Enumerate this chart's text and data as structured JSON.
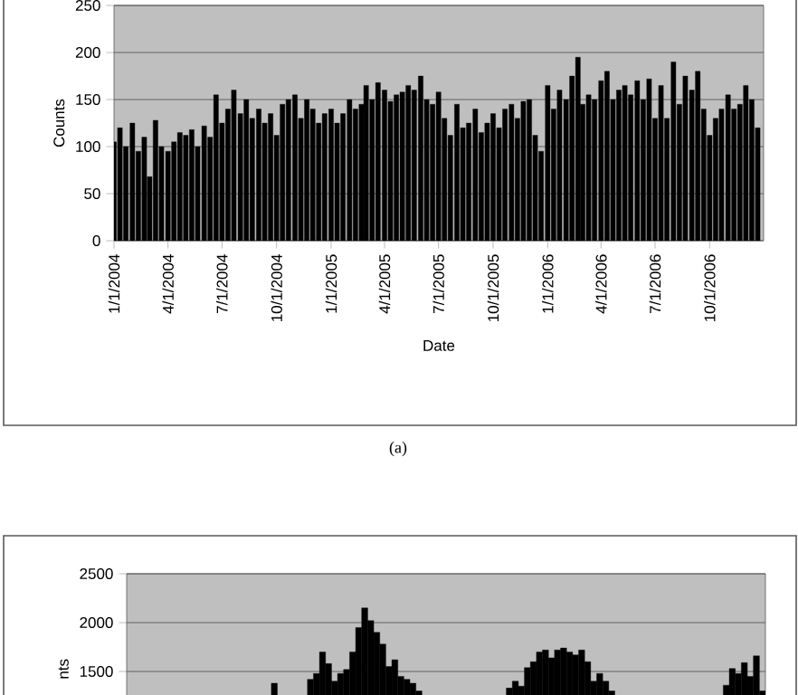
{
  "chart_data": [
    {
      "type": "bar",
      "xlabel": "Date",
      "ylabel": "Counts",
      "color": "#000000",
      "grid": "y",
      "annotations": [
        "(a)"
      ],
      "xlim": [
        "2004-01-01",
        "2006-12-31"
      ],
      "ylim": [
        0,
        250
      ],
      "yticks": [
        0,
        50,
        100,
        150,
        200,
        250
      ],
      "xticks": [
        {
          "value": "2004-01-01",
          "label": "1/1/2004"
        },
        {
          "value": "2004-04-01",
          "label": "4/1/2004"
        },
        {
          "value": "2004-07-01",
          "label": "7/1/2004"
        },
        {
          "value": "2004-10-01",
          "label": "10/1/2004"
        },
        {
          "value": "2005-01-01",
          "label": "1/1/2005"
        },
        {
          "value": "2005-04-01",
          "label": "4/1/2005"
        },
        {
          "value": "2005-07-01",
          "label": "7/1/2005"
        },
        {
          "value": "2005-10-01",
          "label": "10/1/2005"
        },
        {
          "value": "2006-01-01",
          "label": "1/1/2006"
        },
        {
          "value": "2006-04-01",
          "label": "4/1/2006"
        },
        {
          "value": "2006-07-01",
          "label": "7/1/2006"
        },
        {
          "value": "2006-10-01",
          "label": "10/1/2006"
        }
      ],
      "x": [
        "2004-01-01",
        "2004-01-11",
        "2004-01-21",
        "2004-02-01",
        "2004-02-11",
        "2004-02-21",
        "2004-03-01",
        "2004-03-11",
        "2004-03-21",
        "2004-04-01",
        "2004-04-11",
        "2004-04-21",
        "2004-05-01",
        "2004-05-11",
        "2004-05-21",
        "2004-06-01",
        "2004-06-11",
        "2004-06-21",
        "2004-07-01",
        "2004-07-11",
        "2004-07-21",
        "2004-08-01",
        "2004-08-11",
        "2004-08-21",
        "2004-09-01",
        "2004-09-11",
        "2004-09-21",
        "2004-10-01",
        "2004-10-11",
        "2004-10-21",
        "2004-11-01",
        "2004-11-11",
        "2004-11-21",
        "2004-12-01",
        "2004-12-11",
        "2004-12-21",
        "2005-01-01",
        "2005-01-11",
        "2005-01-21",
        "2005-02-01",
        "2005-02-11",
        "2005-02-21",
        "2005-03-01",
        "2005-03-11",
        "2005-03-21",
        "2005-04-01",
        "2005-04-11",
        "2005-04-21",
        "2005-05-01",
        "2005-05-11",
        "2005-05-21",
        "2005-06-01",
        "2005-06-11",
        "2005-06-21",
        "2005-07-01",
        "2005-07-11",
        "2005-07-21",
        "2005-08-01",
        "2005-08-11",
        "2005-08-21",
        "2005-09-01",
        "2005-09-11",
        "2005-09-21",
        "2005-10-01",
        "2005-10-11",
        "2005-10-21",
        "2005-11-01",
        "2005-11-11",
        "2005-11-21",
        "2005-12-01",
        "2005-12-11",
        "2005-12-21",
        "2006-01-01",
        "2006-01-11",
        "2006-01-21",
        "2006-02-01",
        "2006-02-11",
        "2006-02-21",
        "2006-03-01",
        "2006-03-11",
        "2006-03-21",
        "2006-04-01",
        "2006-04-11",
        "2006-04-21",
        "2006-05-01",
        "2006-05-11",
        "2006-05-21",
        "2006-06-01",
        "2006-06-11",
        "2006-06-21",
        "2006-07-01",
        "2006-07-11",
        "2006-07-21",
        "2006-08-01",
        "2006-08-11",
        "2006-08-21",
        "2006-09-01",
        "2006-09-11",
        "2006-09-21",
        "2006-10-01",
        "2006-10-11",
        "2006-10-21",
        "2006-11-01",
        "2006-11-11",
        "2006-11-21",
        "2006-12-01",
        "2006-12-11",
        "2006-12-21"
      ],
      "values": [
        105,
        120,
        100,
        125,
        95,
        110,
        68,
        128,
        100,
        95,
        105,
        115,
        112,
        118,
        100,
        122,
        110,
        155,
        125,
        140,
        160,
        135,
        150,
        130,
        140,
        125,
        135,
        112,
        145,
        150,
        155,
        130,
        150,
        140,
        125,
        135,
        140,
        125,
        135,
        150,
        140,
        145,
        165,
        150,
        168,
        160,
        148,
        155,
        158,
        165,
        160,
        175,
        150,
        145,
        158,
        130,
        112,
        145,
        120,
        125,
        140,
        115,
        125,
        135,
        120,
        140,
        145,
        130,
        148,
        150,
        112,
        95,
        165,
        140,
        160,
        150,
        175,
        195,
        145,
        155,
        150,
        170,
        180,
        150,
        160,
        165,
        155,
        170,
        150,
        172,
        130,
        165,
        130,
        190,
        145,
        175,
        160,
        180,
        140,
        112,
        130,
        140,
        155,
        140,
        145,
        165,
        150,
        120
      ]
    },
    {
      "type": "bar",
      "ylabel": "nts",
      "color": "#000000",
      "grid": "y",
      "tick_labels": "y",
      "ylim": [
        0,
        2500
      ],
      "yticks": [
        1500,
        2000,
        2500
      ],
      "categories": [
        null,
        null,
        null,
        null,
        null,
        null,
        null,
        null,
        null,
        null,
        null,
        null,
        null,
        null,
        null,
        null,
        null,
        null,
        null,
        null,
        null,
        null,
        null,
        null,
        null,
        null,
        null,
        null,
        null,
        null,
        null,
        null,
        null,
        null,
        null,
        null,
        null,
        null,
        null,
        null,
        null,
        null,
        null,
        null,
        null,
        null,
        null,
        null,
        null,
        null,
        null,
        null,
        null,
        null,
        null,
        null,
        null,
        null,
        null,
        null,
        null,
        null,
        null,
        null,
        null,
        null,
        null,
        null,
        null,
        null,
        null,
        null,
        null,
        null,
        null,
        null,
        null,
        null,
        null,
        null,
        null,
        null,
        null,
        null,
        null,
        null,
        null,
        null,
        null,
        null,
        null,
        null,
        null,
        null,
        null,
        null,
        null,
        null,
        null,
        null,
        null,
        null,
        null,
        null,
        null,
        null
      ],
      "values": [
        null,
        null,
        null,
        null,
        null,
        null,
        null,
        null,
        null,
        null,
        null,
        null,
        null,
        null,
        null,
        null,
        null,
        null,
        null,
        null,
        null,
        null,
        null,
        null,
        1380,
        null,
        null,
        null,
        null,
        null,
        1420,
        1480,
        1700,
        1580,
        1400,
        1480,
        1520,
        1700,
        1950,
        2150,
        2020,
        1900,
        1780,
        1550,
        1620,
        1450,
        1420,
        1380,
        1300,
        null,
        null,
        null,
        null,
        null,
        null,
        null,
        null,
        null,
        null,
        null,
        null,
        null,
        null,
        1330,
        1400,
        1350,
        1540,
        1600,
        1700,
        1720,
        1640,
        1720,
        1740,
        1700,
        1670,
        1720,
        1600,
        1400,
        1480,
        1400,
        1300,
        null,
        null,
        null,
        null,
        null,
        null,
        null,
        null,
        null,
        null,
        null,
        null,
        null,
        null,
        null,
        null,
        null,
        null,
        1360,
        1530,
        1480,
        1590,
        1450,
        1660,
        1300
      ]
    }
  ]
}
